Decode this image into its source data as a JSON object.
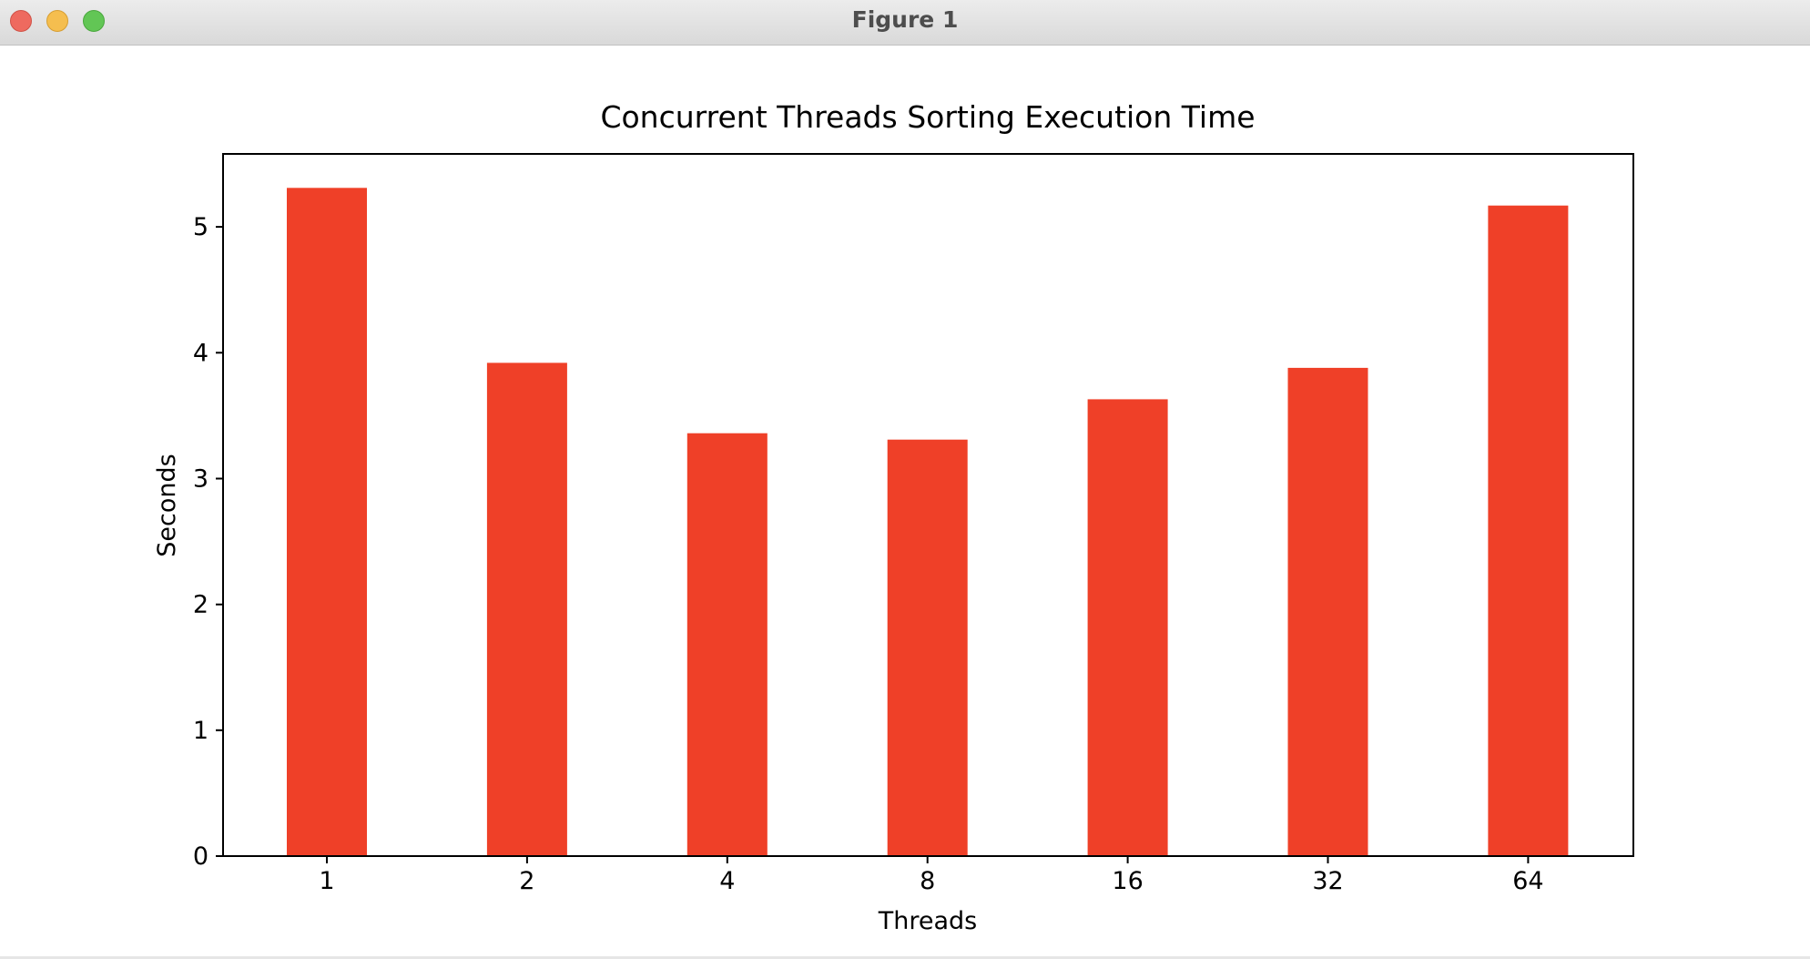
{
  "window": {
    "title": "Figure 1"
  },
  "icons": {
    "close": "close-icon",
    "minimize": "minimize-icon",
    "maximize": "maximize-icon"
  },
  "colors": {
    "bar": "#ef4028"
  },
  "chart_data": {
    "type": "bar",
    "title": "Concurrent Threads Sorting Execution Time",
    "xlabel": "Threads",
    "ylabel": "Seconds",
    "categories": [
      "1",
      "2",
      "4",
      "8",
      "16",
      "32",
      "64"
    ],
    "values": [
      5.31,
      3.92,
      3.36,
      3.31,
      3.63,
      3.88,
      5.17
    ],
    "ylim": [
      0,
      5.58
    ],
    "yticks": [
      "0",
      "1",
      "2",
      "3",
      "4",
      "5"
    ],
    "grid": false,
    "legend": "none"
  }
}
